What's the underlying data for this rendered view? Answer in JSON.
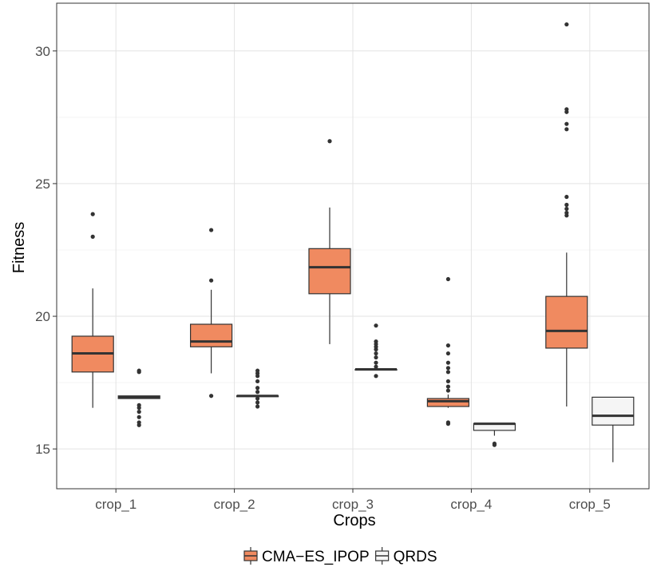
{
  "chart_data": {
    "type": "boxplot",
    "xlabel": "Crops",
    "ylabel": "Fitness",
    "categories": [
      "crop_1",
      "crop_2",
      "crop_3",
      "crop_4",
      "crop_5"
    ],
    "ylim": [
      13.5,
      31.8
    ],
    "yticks": [
      15,
      20,
      25,
      30
    ],
    "grid": true,
    "legend_position": "bottom",
    "series": [
      {
        "name": "CMA−ES_IPOP",
        "color": "#F08A60",
        "boxes": [
          {
            "min": 16.55,
            "q1": 17.9,
            "median": 18.6,
            "q3": 19.25,
            "max": 21.05,
            "outliers": [
              23.0,
              23.85
            ]
          },
          {
            "min": 17.85,
            "q1": 18.85,
            "median": 19.05,
            "q3": 19.7,
            "max": 21.0,
            "outliers": [
              17.0,
              21.35,
              23.25
            ]
          },
          {
            "min": 18.95,
            "q1": 20.85,
            "median": 21.85,
            "q3": 22.55,
            "max": 24.1,
            "outliers": [
              26.6
            ]
          },
          {
            "min": 16.55,
            "q1": 16.6,
            "median": 16.8,
            "q3": 16.9,
            "max": 17.05,
            "outliers": [
              15.95,
              16.0,
              17.2,
              17.35,
              17.55,
              17.9,
              18.05,
              18.25,
              18.6,
              18.9,
              21.4
            ]
          },
          {
            "min": 16.6,
            "q1": 18.8,
            "median": 19.45,
            "q3": 20.75,
            "max": 22.4,
            "outliers": [
              23.8,
              23.9,
              24.05,
              24.2,
              24.5,
              27.05,
              27.25,
              27.7,
              27.8,
              31.0
            ]
          }
        ]
      },
      {
        "name": "QRDS",
        "color": "#F5F5F5",
        "boxes": [
          {
            "min": 16.9,
            "q1": 16.9,
            "median": 16.95,
            "q3": 17.0,
            "max": 17.0,
            "outliers": [
              15.9,
              16.0,
              16.2,
              16.4,
              16.55,
              16.65,
              17.9,
              17.95
            ]
          },
          {
            "min": 17.0,
            "q1": 17.0,
            "median": 17.0,
            "q3": 17.0,
            "max": 17.0,
            "outliers": [
              16.6,
              16.75,
              16.9,
              17.15,
              17.3,
              17.55,
              17.75,
              17.85,
              17.95
            ]
          },
          {
            "min": 18.0,
            "q1": 18.0,
            "median": 18.0,
            "q3": 18.0,
            "max": 18.0,
            "outliers": [
              17.75,
              18.1,
              18.25,
              18.45,
              18.6,
              18.75,
              18.85,
              18.95,
              19.05,
              19.65
            ]
          },
          {
            "min": 15.5,
            "q1": 15.7,
            "median": 15.95,
            "q3": 15.95,
            "max": 15.95,
            "outliers": [
              15.15,
              15.2
            ]
          },
          {
            "min": 14.5,
            "q1": 15.9,
            "median": 16.25,
            "q3": 16.95,
            "max": 16.95,
            "outliers": []
          }
        ]
      }
    ]
  }
}
